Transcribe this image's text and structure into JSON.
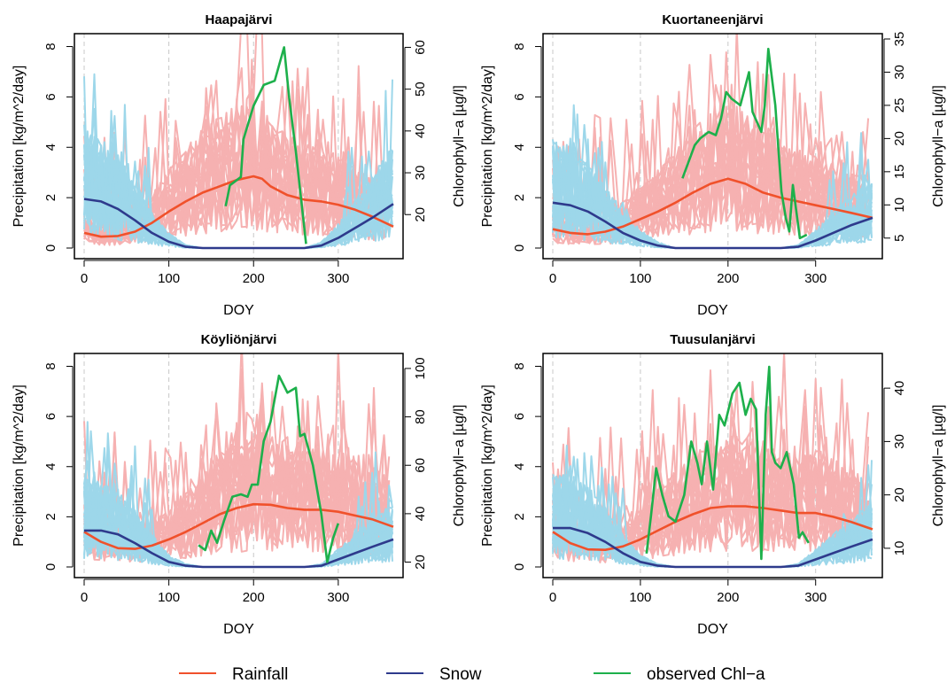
{
  "legend": {
    "items": [
      {
        "label": "Rainfall",
        "color": "#F0512B"
      },
      {
        "label": "Snow",
        "color": "#2E3A8C"
      },
      {
        "label": "observed Chl−a",
        "color": "#1DB04B"
      }
    ]
  },
  "colors": {
    "rainfall_ensemble": "#F6B1B1",
    "snow_ensemble": "#9DD7EA",
    "rainfall_mean": "#F0512B",
    "snow_mean": "#2E3A8C",
    "chla": "#1DB04B",
    "grid": "#C8C8C8"
  },
  "chart_data": [
    {
      "type": "line",
      "title": "Haapajärvi",
      "xlabel": "DOY",
      "ylabel": "Precipitation [kg/m^2/day]",
      "y2label": "Chlorophyll−a [µg/l]",
      "xlim": [
        0,
        365
      ],
      "ylim": [
        0,
        8.3
      ],
      "y2lim": [
        12,
        62
      ],
      "xticks": [
        0,
        100,
        200,
        300
      ],
      "yticks": [
        0,
        2,
        4,
        6,
        8
      ],
      "y2ticks": [
        20,
        30,
        40,
        50,
        60
      ],
      "vgrid": [
        0,
        100,
        200,
        300
      ],
      "series": [
        {
          "name": "Rainfall",
          "axis": "left",
          "x": [
            0,
            20,
            40,
            60,
            80,
            100,
            120,
            140,
            160,
            180,
            200,
            210,
            220,
            240,
            260,
            280,
            300,
            320,
            340,
            365
          ],
          "y": [
            0.6,
            0.45,
            0.48,
            0.65,
            1.0,
            1.45,
            1.85,
            2.2,
            2.45,
            2.7,
            2.85,
            2.75,
            2.45,
            2.1,
            1.92,
            1.85,
            1.72,
            1.52,
            1.25,
            0.85
          ]
        },
        {
          "name": "Snow",
          "axis": "left",
          "x": [
            0,
            20,
            40,
            60,
            80,
            100,
            120,
            140,
            160,
            200,
            240,
            260,
            280,
            300,
            320,
            340,
            365
          ],
          "y": [
            1.95,
            1.85,
            1.55,
            1.1,
            0.6,
            0.25,
            0.05,
            0.0,
            0.0,
            0.0,
            0.0,
            0.0,
            0.1,
            0.4,
            0.8,
            1.2,
            1.75
          ]
        },
        {
          "name": "observed Chl−a",
          "axis": "right",
          "x": [
            167,
            172,
            185,
            188,
            200,
            212,
            225,
            236,
            242,
            250,
            262
          ],
          "y": [
            22,
            27,
            29,
            38,
            46,
            51,
            52,
            60,
            48,
            35,
            13
          ]
        }
      ]
    },
    {
      "type": "line",
      "title": "Kuortaneenjärvi",
      "xlabel": "DOY",
      "ylabel": "Precipitation [kg/m^2/day]",
      "y2label": "Chlorophyll−a [µg/l]",
      "xlim": [
        0,
        365
      ],
      "ylim": [
        0,
        8.3
      ],
      "y2lim": [
        3.5,
        35
      ],
      "xticks": [
        0,
        100,
        200,
        300
      ],
      "yticks": [
        0,
        2,
        4,
        6,
        8
      ],
      "y2ticks": [
        5,
        10,
        15,
        20,
        25,
        30,
        35
      ],
      "vgrid": [
        0,
        100,
        200,
        300
      ],
      "series": [
        {
          "name": "Rainfall",
          "axis": "left",
          "x": [
            0,
            20,
            40,
            60,
            80,
            100,
            120,
            140,
            160,
            180,
            200,
            220,
            240,
            260,
            280,
            300,
            320,
            340,
            365
          ],
          "y": [
            0.75,
            0.6,
            0.55,
            0.65,
            0.85,
            1.15,
            1.45,
            1.8,
            2.2,
            2.55,
            2.75,
            2.55,
            2.2,
            2.0,
            1.85,
            1.7,
            1.55,
            1.4,
            1.2
          ]
        },
        {
          "name": "Snow",
          "axis": "left",
          "x": [
            0,
            20,
            40,
            60,
            80,
            100,
            120,
            140,
            160,
            200,
            240,
            260,
            280,
            300,
            320,
            340,
            365
          ],
          "y": [
            1.8,
            1.7,
            1.45,
            1.05,
            0.6,
            0.3,
            0.1,
            0.0,
            0.0,
            0.0,
            0.0,
            0.0,
            0.05,
            0.3,
            0.6,
            0.9,
            1.2
          ]
        },
        {
          "name": "observed Chl−a",
          "axis": "right",
          "x": [
            148,
            162,
            168,
            178,
            186,
            192,
            198,
            204,
            214,
            224,
            228,
            238,
            242,
            246,
            254,
            261,
            266,
            270,
            274,
            282,
            290
          ],
          "y": [
            14,
            19,
            20,
            21,
            20.5,
            23,
            27,
            26,
            25,
            30,
            24,
            21,
            25,
            33.5,
            25,
            12,
            8,
            6,
            13,
            5,
            5.5
          ]
        }
      ]
    },
    {
      "type": "line",
      "title": "Köyliönjärvi",
      "xlabel": "DOY",
      "ylabel": "Precipitation [kg/m^2/day]",
      "y2label": "Chlorophyll−a [µg/l]",
      "xlim": [
        0,
        365
      ],
      "ylim": [
        0,
        8.3
      ],
      "y2lim": [
        18,
        104
      ],
      "xticks": [
        0,
        100,
        200,
        300
      ],
      "yticks": [
        0,
        2,
        4,
        6,
        8
      ],
      "y2ticks": [
        20,
        40,
        60,
        80,
        100
      ],
      "vgrid": [
        0,
        100,
        200,
        300
      ],
      "series": [
        {
          "name": "Rainfall",
          "axis": "left",
          "x": [
            0,
            20,
            40,
            60,
            80,
            100,
            120,
            140,
            160,
            180,
            200,
            220,
            240,
            260,
            280,
            300,
            320,
            340,
            365
          ],
          "y": [
            1.4,
            1.0,
            0.75,
            0.72,
            0.85,
            1.1,
            1.4,
            1.75,
            2.1,
            2.35,
            2.5,
            2.48,
            2.35,
            2.28,
            2.28,
            2.2,
            2.05,
            1.9,
            1.6
          ]
        },
        {
          "name": "Snow",
          "axis": "left",
          "x": [
            0,
            20,
            40,
            60,
            80,
            100,
            120,
            140,
            200,
            260,
            280,
            300,
            320,
            340,
            365
          ],
          "y": [
            1.45,
            1.45,
            1.3,
            0.95,
            0.55,
            0.2,
            0.05,
            0.0,
            0.0,
            0.0,
            0.05,
            0.3,
            0.55,
            0.8,
            1.1
          ]
        },
        {
          "name": "observed Chl−a",
          "axis": "right",
          "x": [
            135,
            143,
            150,
            157,
            165,
            175,
            185,
            193,
            198,
            205,
            212,
            220,
            230,
            240,
            250,
            255,
            260,
            270,
            280,
            287,
            294,
            300
          ],
          "y": [
            27,
            25,
            33,
            28,
            37,
            47,
            48,
            47,
            52,
            52,
            70,
            78,
            97,
            90,
            92,
            72,
            73,
            60,
            40,
            20,
            30,
            36
          ]
        }
      ]
    },
    {
      "type": "line",
      "title": "Tuusulanjärvi",
      "xlabel": "DOY",
      "ylabel": "Precipitation [kg/m^2/day]",
      "y2label": "Chlorophyll−a [µg/l]",
      "xlim": [
        0,
        365
      ],
      "ylim": [
        0,
        8.3
      ],
      "y2lim": [
        6.5,
        45.5
      ],
      "xticks": [
        0,
        100,
        200,
        300
      ],
      "yticks": [
        0,
        2,
        4,
        6,
        8
      ],
      "y2ticks": [
        10,
        20,
        30,
        40
      ],
      "vgrid": [
        0,
        100,
        200,
        300
      ],
      "series": [
        {
          "name": "Rainfall",
          "axis": "left",
          "x": [
            0,
            20,
            40,
            60,
            80,
            100,
            120,
            140,
            160,
            180,
            200,
            220,
            240,
            260,
            280,
            300,
            320,
            340,
            365
          ],
          "y": [
            1.4,
            0.95,
            0.7,
            0.68,
            0.82,
            1.1,
            1.45,
            1.8,
            2.1,
            2.35,
            2.42,
            2.42,
            2.35,
            2.25,
            2.15,
            2.15,
            2.0,
            1.8,
            1.5
          ]
        },
        {
          "name": "Snow",
          "axis": "left",
          "x": [
            0,
            20,
            40,
            60,
            80,
            100,
            120,
            140,
            200,
            260,
            280,
            300,
            320,
            340,
            365
          ],
          "y": [
            1.55,
            1.55,
            1.35,
            1.0,
            0.55,
            0.2,
            0.05,
            0.0,
            0.0,
            0.0,
            0.05,
            0.3,
            0.55,
            0.8,
            1.1
          ]
        },
        {
          "name": "observed Chl−a",
          "axis": "right",
          "x": [
            107,
            112,
            118,
            125,
            132,
            140,
            150,
            158,
            165,
            170,
            176,
            183,
            190,
            196,
            205,
            213,
            220,
            226,
            232,
            238,
            243,
            247,
            250,
            254,
            260,
            267,
            275,
            281,
            285,
            292
          ],
          "y": [
            9,
            16,
            25,
            20,
            16,
            15,
            20,
            30,
            26,
            22,
            30,
            21,
            35,
            33,
            39,
            41,
            35,
            38,
            36,
            8,
            35,
            44,
            28,
            26,
            25,
            28,
            22,
            12,
            13,
            11
          ]
        }
      ]
    }
  ]
}
